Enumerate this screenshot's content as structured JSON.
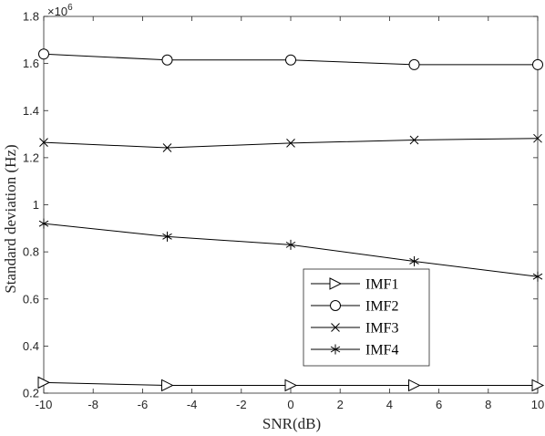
{
  "chart_data": {
    "type": "line",
    "title": "",
    "xlabel": "SNR(dB)",
    "ylabel": "Standard deviation (Hz)",
    "y_exponent_label": "×10",
    "y_exponent_power": "6",
    "xlim": [
      -10,
      10
    ],
    "ylim": [
      0.2,
      1.8
    ],
    "x_ticks": [
      -10,
      -8,
      -6,
      -4,
      -2,
      0,
      2,
      4,
      6,
      8,
      10
    ],
    "x_tick_labels": [
      "-10",
      "-8",
      "-6",
      "-4",
      "-2",
      "0",
      "2",
      "4",
      "6",
      "8",
      "10"
    ],
    "y_ticks": [
      0.2,
      0.4,
      0.6,
      0.8,
      1.0,
      1.2,
      1.4,
      1.6,
      1.8
    ],
    "y_tick_labels": [
      "0.2",
      "0.4",
      "0.6",
      "0.8",
      "1",
      "1.2",
      "1.4",
      "1.6",
      "1.8"
    ],
    "grid": false,
    "legend_position": "lower-right",
    "x": [
      -10,
      -5,
      0,
      5,
      10
    ],
    "series": [
      {
        "name": "IMF1",
        "marker": "triangle-right",
        "values": [
          0.245,
          0.233,
          0.233,
          0.233,
          0.233
        ]
      },
      {
        "name": "IMF2",
        "marker": "circle",
        "values": [
          1.64,
          1.615,
          1.615,
          1.595,
          1.595
        ]
      },
      {
        "name": "IMF3",
        "marker": "x",
        "values": [
          1.265,
          1.242,
          1.262,
          1.275,
          1.282
        ]
      },
      {
        "name": "IMF4",
        "marker": "asterisk",
        "values": [
          0.92,
          0.865,
          0.83,
          0.76,
          0.695
        ]
      }
    ],
    "colors": {
      "line": "#000000",
      "axis": "#262626"
    }
  }
}
